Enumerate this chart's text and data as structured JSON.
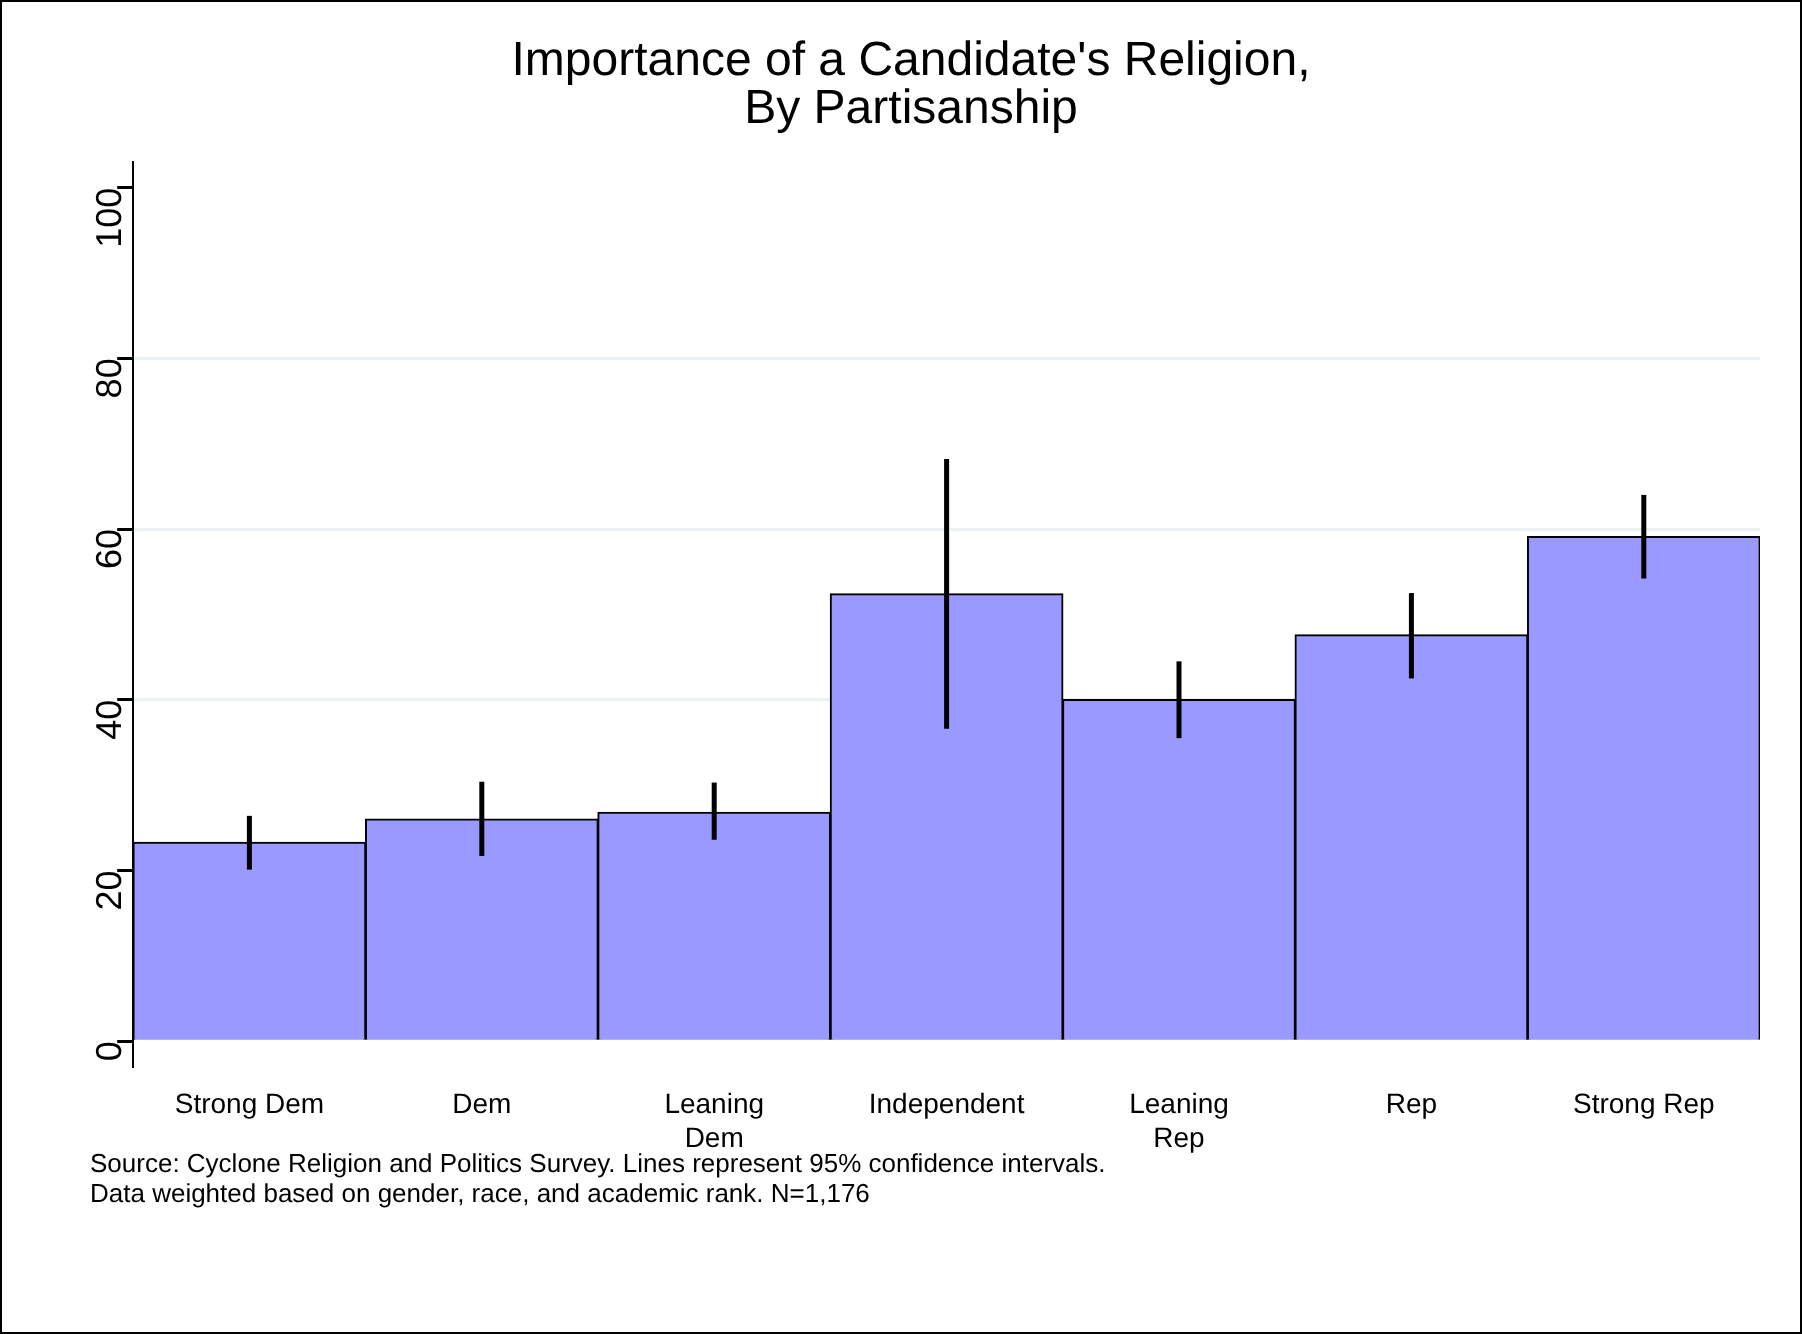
{
  "chart_data": {
    "type": "bar",
    "title": "Importance of a Candidate's Religion,\nBy Partisanship",
    "categories": [
      "Strong Dem",
      "Dem",
      "Leaning Dem",
      "Independent",
      "Leaning Rep",
      "Rep",
      "Strong Rep"
    ],
    "values": [
      23.3,
      26.0,
      26.8,
      52.4,
      40.0,
      47.6,
      59.1
    ],
    "errors": [
      [
        20.1,
        26.4
      ],
      [
        21.7,
        30.4
      ],
      [
        23.6,
        30.3
      ],
      [
        36.6,
        68.2
      ],
      [
        35.5,
        44.5
      ],
      [
        42.5,
        52.5
      ],
      [
        54.2,
        64.0
      ]
    ],
    "color": "#9999ff",
    "ylim": [
      -3,
      103
    ],
    "yticks": [
      0,
      20,
      40,
      60,
      80,
      100
    ],
    "grid": "y",
    "legend": false,
    "annotations": [
      "Source: Cyclone Religion and Politics Survey. Lines represent 95% confidence intervals.",
      "Data weighted based on gender, race, and academic rank. N=1,176"
    ]
  }
}
